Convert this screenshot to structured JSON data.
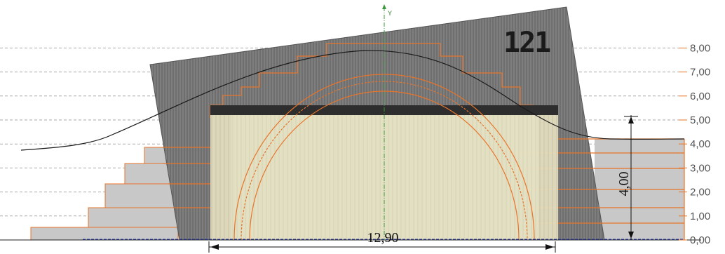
{
  "section_view": {
    "levels": [
      "0,00",
      "1,00",
      "2,00",
      "3,00",
      "4,00",
      "5,00",
      "6,00",
      "7,00",
      "8,00"
    ],
    "axis_label": "Y",
    "logo_text": "121",
    "dimensions": {
      "horizontal": "12,90",
      "vertical": "4,00"
    },
    "colors": {
      "wall": "#6b6b6b",
      "cladding_line": "#8a8a8a",
      "roof_band": "#333333",
      "interior_fill": "#e8e2c4",
      "profile_line": "#e8742a",
      "ground_blue": "#2b3fb0",
      "axis_green": "#3c9a3c",
      "level_line": "#aaaaaa",
      "terrain_gray": "#c8c8c8"
    }
  }
}
